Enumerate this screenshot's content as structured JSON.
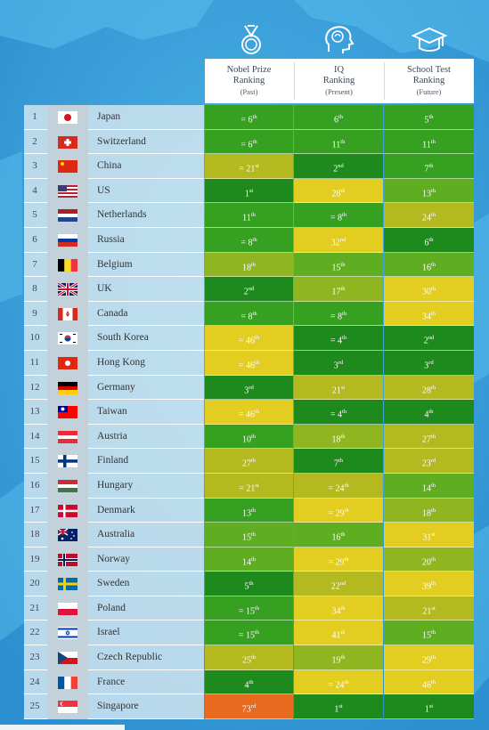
{
  "columns": [
    {
      "line1": "Nobel Prize",
      "line2": "Ranking",
      "sub": "(Past)",
      "icon": "medal-icon"
    },
    {
      "line1": "IQ",
      "line2": "Ranking",
      "sub": "(Present)",
      "icon": "brain-head-icon"
    },
    {
      "line1": "School Test",
      "line2": "Ranking",
      "sub": "(Future)",
      "icon": "graduation-cap-icon"
    }
  ],
  "colors": {
    "dark_green": "#1e8a1e",
    "green": "#36a020",
    "light_green": "#5fae22",
    "olive": "#8fb520",
    "olive_yellow": "#b3b91e",
    "yellow": "#e2cd20",
    "orange": "#e86a1e"
  },
  "rows": [
    {
      "rank": "1",
      "country": "Japan",
      "flag": "jp",
      "cells": [
        {
          "t": "= 6",
          "s": "th",
          "c": "green"
        },
        {
          "t": "6",
          "s": "th",
          "c": "green"
        },
        {
          "t": "5",
          "s": "th",
          "c": "green"
        }
      ]
    },
    {
      "rank": "2",
      "country": "Switzerland",
      "flag": "ch",
      "cells": [
        {
          "t": "= 6",
          "s": "th",
          "c": "green"
        },
        {
          "t": "11",
          "s": "th",
          "c": "green"
        },
        {
          "t": "11",
          "s": "th",
          "c": "green"
        }
      ]
    },
    {
      "rank": "3",
      "country": "China",
      "flag": "cn",
      "cells": [
        {
          "t": "= 21",
          "s": "st",
          "c": "olive_yellow"
        },
        {
          "t": "2",
          "s": "nd",
          "c": "dark_green"
        },
        {
          "t": "7",
          "s": "th",
          "c": "green"
        }
      ]
    },
    {
      "rank": "4",
      "country": "US",
      "flag": "us",
      "cells": [
        {
          "t": "1",
          "s": "st",
          "c": "dark_green"
        },
        {
          "t": "28",
          "s": "th",
          "c": "yellow"
        },
        {
          "t": "13",
          "s": "th",
          "c": "light_green"
        }
      ]
    },
    {
      "rank": "5",
      "country": "Netherlands",
      "flag": "nl",
      "cells": [
        {
          "t": "11",
          "s": "th",
          "c": "green"
        },
        {
          "t": "= 8",
          "s": "th",
          "c": "green"
        },
        {
          "t": "24",
          "s": "th",
          "c": "olive_yellow"
        }
      ]
    },
    {
      "rank": "6",
      "country": "Russia",
      "flag": "ru",
      "cells": [
        {
          "t": "= 8",
          "s": "th",
          "c": "green"
        },
        {
          "t": "32",
          "s": "nd",
          "c": "yellow"
        },
        {
          "t": "6",
          "s": "th",
          "c": "dark_green"
        }
      ]
    },
    {
      "rank": "7",
      "country": "Belgium",
      "flag": "be",
      "cells": [
        {
          "t": "18",
          "s": "th",
          "c": "olive"
        },
        {
          "t": "15",
          "s": "th",
          "c": "light_green"
        },
        {
          "t": "16",
          "s": "th",
          "c": "light_green"
        }
      ]
    },
    {
      "rank": "8",
      "country": "UK",
      "flag": "uk",
      "cells": [
        {
          "t": "2",
          "s": "nd",
          "c": "dark_green"
        },
        {
          "t": "17",
          "s": "th",
          "c": "olive"
        },
        {
          "t": "30",
          "s": "th",
          "c": "yellow"
        }
      ]
    },
    {
      "rank": "9",
      "country": "Canada",
      "flag": "ca",
      "cells": [
        {
          "t": "= 8",
          "s": "th",
          "c": "green"
        },
        {
          "t": "= 8",
          "s": "th",
          "c": "green"
        },
        {
          "t": "34",
          "s": "th",
          "c": "yellow"
        }
      ]
    },
    {
      "rank": "10",
      "country": "South Korea",
      "flag": "kr",
      "cells": [
        {
          "t": "= 46",
          "s": "th",
          "c": "yellow"
        },
        {
          "t": "= 4",
          "s": "th",
          "c": "dark_green"
        },
        {
          "t": "2",
          "s": "nd",
          "c": "dark_green"
        }
      ]
    },
    {
      "rank": "11",
      "country": "Hong Kong",
      "flag": "hk",
      "cells": [
        {
          "t": "= 46",
          "s": "th",
          "c": "yellow"
        },
        {
          "t": "3",
          "s": "rd",
          "c": "dark_green"
        },
        {
          "t": "3",
          "s": "rd",
          "c": "dark_green"
        }
      ]
    },
    {
      "rank": "12",
      "country": "Germany",
      "flag": "de",
      "cells": [
        {
          "t": "3",
          "s": "rd",
          "c": "dark_green"
        },
        {
          "t": "21",
          "s": "st",
          "c": "olive_yellow"
        },
        {
          "t": "28",
          "s": "th",
          "c": "olive_yellow"
        }
      ]
    },
    {
      "rank": "13",
      "country": "Taiwan",
      "flag": "tw",
      "cells": [
        {
          "t": "= 46",
          "s": "th",
          "c": "yellow"
        },
        {
          "t": "= 4",
          "s": "th",
          "c": "dark_green"
        },
        {
          "t": "4",
          "s": "th",
          "c": "dark_green"
        }
      ]
    },
    {
      "rank": "14",
      "country": "Austria",
      "flag": "at",
      "cells": [
        {
          "t": "10",
          "s": "th",
          "c": "green"
        },
        {
          "t": "18",
          "s": "th",
          "c": "olive"
        },
        {
          "t": "27",
          "s": "th",
          "c": "olive_yellow"
        }
      ]
    },
    {
      "rank": "15",
      "country": "Finland",
      "flag": "fi",
      "cells": [
        {
          "t": "27",
          "s": "th",
          "c": "olive_yellow"
        },
        {
          "t": "7",
          "s": "th",
          "c": "dark_green"
        },
        {
          "t": "23",
          "s": "rd",
          "c": "olive_yellow"
        }
      ]
    },
    {
      "rank": "16",
      "country": "Hungary",
      "flag": "hu",
      "cells": [
        {
          "t": "= 21",
          "s": "st",
          "c": "olive_yellow"
        },
        {
          "t": "= 24",
          "s": "th",
          "c": "olive_yellow"
        },
        {
          "t": "14",
          "s": "th",
          "c": "light_green"
        }
      ]
    },
    {
      "rank": "17",
      "country": "Denmark",
      "flag": "dk",
      "cells": [
        {
          "t": "13",
          "s": "th",
          "c": "green"
        },
        {
          "t": "= 29",
          "s": "th",
          "c": "yellow"
        },
        {
          "t": "18",
          "s": "th",
          "c": "olive"
        }
      ]
    },
    {
      "rank": "18",
      "country": "Australia",
      "flag": "au",
      "cells": [
        {
          "t": "15",
          "s": "th",
          "c": "light_green"
        },
        {
          "t": "16",
          "s": "th",
          "c": "light_green"
        },
        {
          "t": "31",
          "s": "st",
          "c": "yellow"
        }
      ]
    },
    {
      "rank": "19",
      "country": "Norway",
      "flag": "no",
      "cells": [
        {
          "t": "14",
          "s": "th",
          "c": "light_green"
        },
        {
          "t": "= 29",
          "s": "th",
          "c": "yellow"
        },
        {
          "t": "20",
          "s": "th",
          "c": "olive"
        }
      ]
    },
    {
      "rank": "20",
      "country": "Sweden",
      "flag": "se",
      "cells": [
        {
          "t": "5",
          "s": "th",
          "c": "dark_green"
        },
        {
          "t": "22",
          "s": "nd",
          "c": "olive_yellow"
        },
        {
          "t": "39",
          "s": "th",
          "c": "yellow"
        }
      ]
    },
    {
      "rank": "21",
      "country": "Poland",
      "flag": "pl",
      "cells": [
        {
          "t": "= 15",
          "s": "th",
          "c": "green"
        },
        {
          "t": "34",
          "s": "th",
          "c": "yellow"
        },
        {
          "t": "21",
          "s": "st",
          "c": "olive_yellow"
        }
      ]
    },
    {
      "rank": "22",
      "country": "Israel",
      "flag": "il",
      "cells": [
        {
          "t": "= 15",
          "s": "th",
          "c": "green"
        },
        {
          "t": "41",
          "s": "th",
          "c": "yellow"
        },
        {
          "t": "15",
          "s": "th",
          "c": "light_green"
        }
      ]
    },
    {
      "rank": "23",
      "country": "Czech Republic",
      "flag": "cz",
      "cells": [
        {
          "t": "25",
          "s": "th",
          "c": "olive_yellow"
        },
        {
          "t": "19",
          "s": "th",
          "c": "olive"
        },
        {
          "t": "29",
          "s": "th",
          "c": "yellow"
        }
      ]
    },
    {
      "rank": "24",
      "country": "France",
      "flag": "fr",
      "cells": [
        {
          "t": "4",
          "s": "th",
          "c": "dark_green"
        },
        {
          "t": "= 24",
          "s": "th",
          "c": "yellow"
        },
        {
          "t": "46",
          "s": "th",
          "c": "yellow"
        }
      ]
    },
    {
      "rank": "25",
      "country": "Singapore",
      "flag": "sg",
      "cells": [
        {
          "t": "73",
          "s": "rd",
          "c": "orange"
        },
        {
          "t": "1",
          "s": "st",
          "c": "dark_green"
        },
        {
          "t": "1",
          "s": "st",
          "c": "dark_green"
        }
      ]
    }
  ]
}
